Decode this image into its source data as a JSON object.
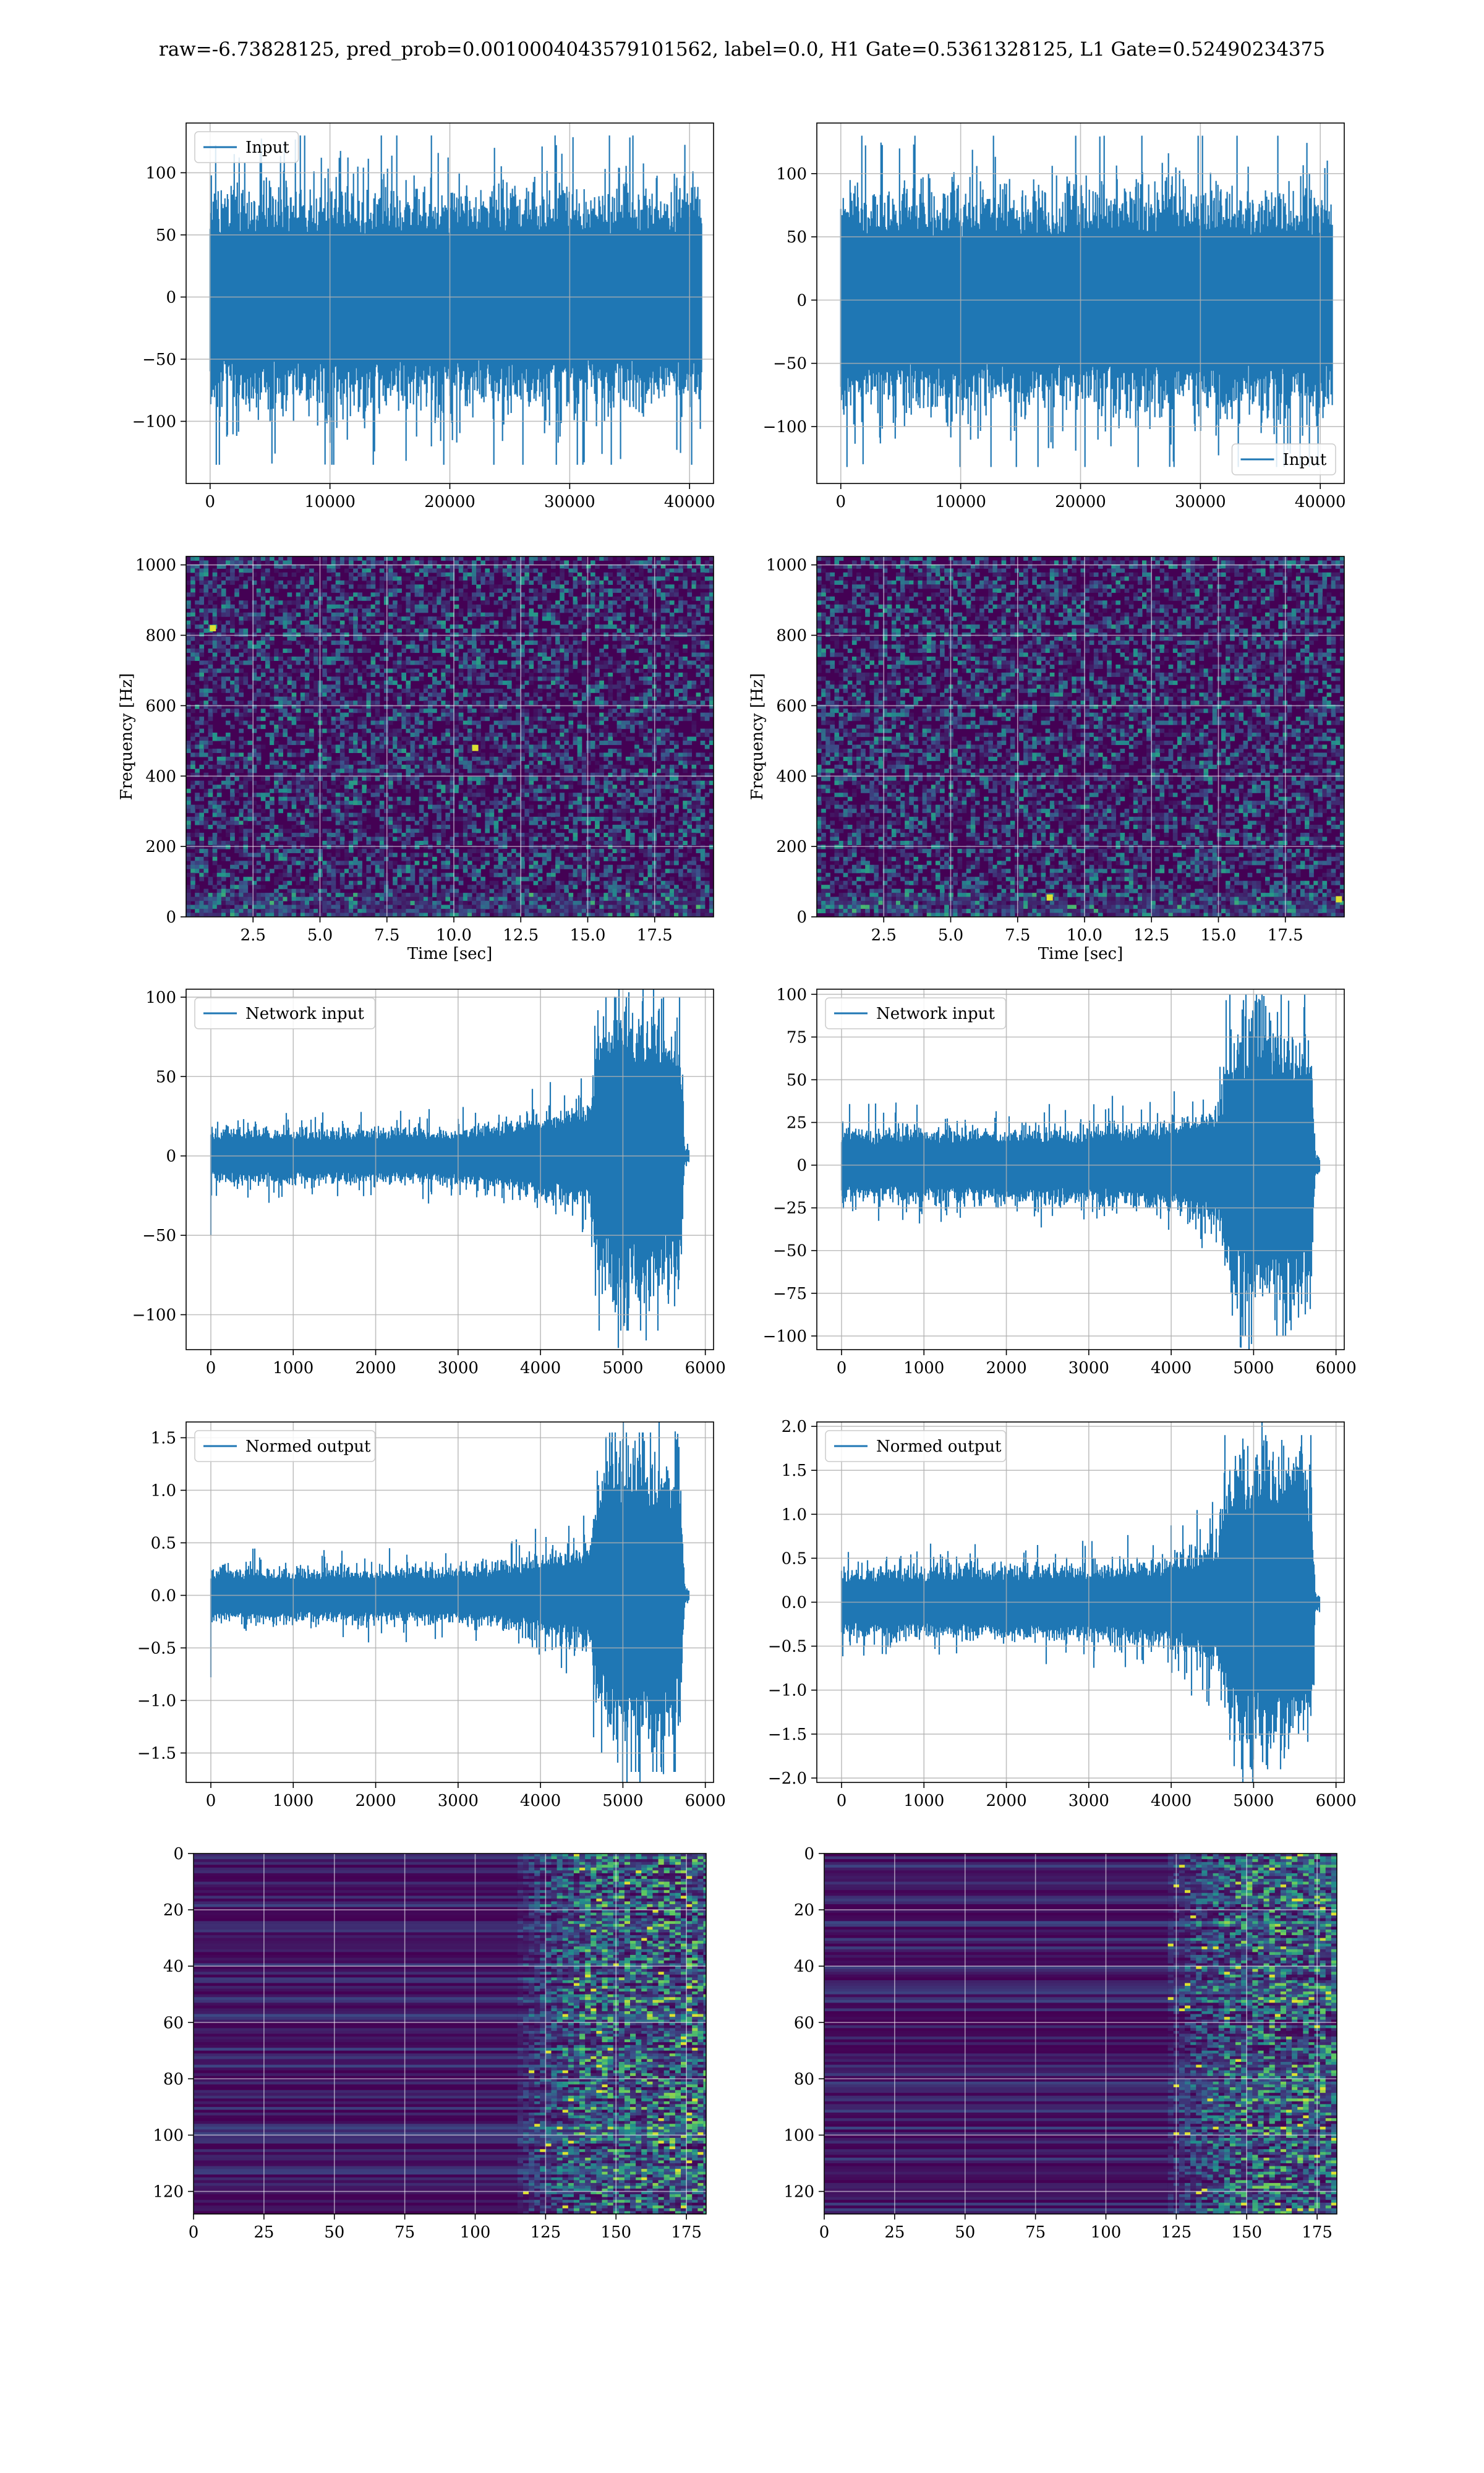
{
  "figure": {
    "title": "raw=-6.73828125, pred_prob=0.0010004043579101562, label=0.0, H1 Gate=0.5361328125, L1 Gate=0.52490234375"
  },
  "colors": {
    "line": "#1f77b4",
    "viridis_dark": "#440154",
    "viridis_mid": "#21918c",
    "viridis_bright": "#fde725",
    "grid": "#b0b0b0"
  },
  "chart_data": [
    {
      "id": "input-h1",
      "type": "line",
      "series": [
        {
          "name": "Input"
        }
      ],
      "legend": "upper-left",
      "grid": true,
      "xlim": [
        -2000,
        42000
      ],
      "ylim": [
        -150,
        140
      ],
      "xticks": [
        0,
        10000,
        20000,
        30000,
        40000
      ],
      "yticks": [
        -100,
        -50,
        0,
        50,
        100
      ],
      "x": [
        0,
        41000
      ],
      "noise": {
        "envelope": [
          [
            0,
            50
          ],
          [
            41000,
            50
          ]
        ],
        "spike_max": 130,
        "min": -135
      }
    },
    {
      "id": "input-l1",
      "type": "line",
      "series": [
        {
          "name": "Input"
        }
      ],
      "legend": "lower-right",
      "grid": true,
      "xlim": [
        -2000,
        42000
      ],
      "ylim": [
        -145,
        140
      ],
      "xticks": [
        0,
        10000,
        20000,
        30000,
        40000
      ],
      "yticks": [
        -100,
        -50,
        0,
        50,
        100
      ],
      "x": [
        0,
        41000
      ],
      "noise": {
        "envelope": [
          [
            0,
            50
          ],
          [
            41000,
            50
          ]
        ],
        "spike_max": 130,
        "min": -132
      }
    },
    {
      "id": "spectrogram-h1",
      "type": "heatmap",
      "xlabel": "Time [sec]",
      "ylabel": "Frequency [Hz]",
      "grid": true,
      "xlim": [
        0,
        19.7
      ],
      "ylim": [
        0,
        1024
      ],
      "xticks": [
        2.5,
        5.0,
        7.5,
        10.0,
        12.5,
        15.0,
        17.5
      ],
      "yticks": [
        0,
        200,
        400,
        600,
        800,
        1000
      ],
      "hot_spots": [
        {
          "t": 10.8,
          "f": 480
        },
        {
          "t": 1.0,
          "f": 820
        }
      ]
    },
    {
      "id": "spectrogram-l1",
      "type": "heatmap",
      "xlabel": "Time [sec]",
      "ylabel": "Frequency [Hz]",
      "grid": true,
      "xlim": [
        0,
        19.7
      ],
      "ylim": [
        0,
        1024
      ],
      "xticks": [
        2.5,
        5.0,
        7.5,
        10.0,
        12.5,
        15.0,
        17.5
      ],
      "yticks": [
        0,
        200,
        400,
        600,
        800,
        1000
      ],
      "hot_spots": [
        {
          "t": 8.7,
          "f": 55
        },
        {
          "t": 19.5,
          "f": 50
        }
      ]
    },
    {
      "id": "network-input-h1",
      "type": "line",
      "series": [
        {
          "name": "Network input"
        }
      ],
      "legend": "upper-left",
      "grid": true,
      "xlim": [
        -300,
        6100
      ],
      "ylim": [
        -122,
        105
      ],
      "xticks": [
        0,
        1000,
        2000,
        3000,
        4000,
        5000,
        6000
      ],
      "yticks": [
        -100,
        -50,
        0,
        50,
        100
      ],
      "x": [
        0,
        5800
      ],
      "noise": {
        "envelope": [
          [
            0,
            10
          ],
          [
            3000,
            10
          ],
          [
            4000,
            15
          ],
          [
            4600,
            20
          ],
          [
            4700,
            45
          ],
          [
            5000,
            55
          ],
          [
            5400,
            50
          ],
          [
            5700,
            45
          ],
          [
            5750,
            3
          ],
          [
            5800,
            3
          ]
        ],
        "spike_max": 100,
        "min": -110,
        "start_spike": -50
      }
    },
    {
      "id": "network-input-l1",
      "type": "line",
      "series": [
        {
          "name": "Network input"
        }
      ],
      "legend": "upper-left",
      "grid": true,
      "xlim": [
        -300,
        6100
      ],
      "ylim": [
        -108,
        103
      ],
      "xticks": [
        0,
        1000,
        2000,
        3000,
        4000,
        5000,
        6000
      ],
      "yticks": [
        -100,
        -75,
        -50,
        -25,
        0,
        25,
        50,
        75,
        100
      ],
      "x": [
        0,
        5800
      ],
      "noise": {
        "envelope": [
          [
            0,
            12
          ],
          [
            3000,
            13
          ],
          [
            4000,
            15
          ],
          [
            4600,
            22
          ],
          [
            4700,
            45
          ],
          [
            5000,
            52
          ],
          [
            5400,
            48
          ],
          [
            5700,
            42
          ],
          [
            5750,
            3
          ],
          [
            5800,
            3
          ]
        ],
        "spike_max": 100,
        "min": -100
      }
    },
    {
      "id": "normed-output-h1",
      "type": "line",
      "series": [
        {
          "name": "Normed output"
        }
      ],
      "legend": "upper-left",
      "grid": true,
      "xlim": [
        -300,
        6100
      ],
      "ylim": [
        -1.78,
        1.65
      ],
      "xticks": [
        0,
        1000,
        2000,
        3000,
        4000,
        5000,
        6000
      ],
      "yticks": [
        -1.5,
        -1.0,
        -0.5,
        0.0,
        0.5,
        1.0,
        1.5
      ],
      "x": [
        0,
        5800
      ],
      "noise": {
        "envelope": [
          [
            0,
            0.15
          ],
          [
            3000,
            0.15
          ],
          [
            4000,
            0.22
          ],
          [
            4600,
            0.3
          ],
          [
            4700,
            0.7
          ],
          [
            5000,
            0.85
          ],
          [
            5400,
            0.75
          ],
          [
            5700,
            0.68
          ],
          [
            5750,
            0.04
          ],
          [
            5800,
            0.04
          ]
        ],
        "spike_max": 1.55,
        "min": -1.68,
        "start_spike": -0.78
      }
    },
    {
      "id": "normed-output-l1",
      "type": "line",
      "series": [
        {
          "name": "Normed output"
        }
      ],
      "legend": "upper-left",
      "grid": true,
      "xlim": [
        -300,
        6100
      ],
      "ylim": [
        -2.05,
        2.05
      ],
      "xticks": [
        0,
        1000,
        2000,
        3000,
        4000,
        5000,
        6000
      ],
      "yticks": [
        -2.0,
        -1.5,
        -1.0,
        -0.5,
        0.0,
        0.5,
        1.0,
        1.5,
        2.0
      ],
      "x": [
        0,
        5800
      ],
      "noise": {
        "envelope": [
          [
            0,
            0.22
          ],
          [
            3000,
            0.25
          ],
          [
            4000,
            0.3
          ],
          [
            4600,
            0.45
          ],
          [
            4700,
            0.9
          ],
          [
            5000,
            1.0
          ],
          [
            5400,
            0.95
          ],
          [
            5700,
            0.85
          ],
          [
            5750,
            0.05
          ],
          [
            5800,
            0.05
          ]
        ],
        "spike_max": 1.9,
        "min": -1.9
      }
    },
    {
      "id": "feature-map-h1",
      "type": "heatmap",
      "grid": true,
      "xlim": [
        0,
        182
      ],
      "ylim": [
        128,
        0
      ],
      "xticks": [
        0,
        25,
        50,
        75,
        100,
        125,
        150,
        175
      ],
      "yticks": [
        0,
        20,
        40,
        60,
        80,
        100,
        120
      ],
      "activity_onset": 115
    },
    {
      "id": "feature-map-l1",
      "type": "heatmap",
      "grid": true,
      "xlim": [
        0,
        182
      ],
      "ylim": [
        128,
        0
      ],
      "xticks": [
        0,
        25,
        50,
        75,
        100,
        125,
        150,
        175
      ],
      "yticks": [
        0,
        20,
        40,
        60,
        80,
        100,
        120
      ],
      "activity_onset": 122
    }
  ]
}
